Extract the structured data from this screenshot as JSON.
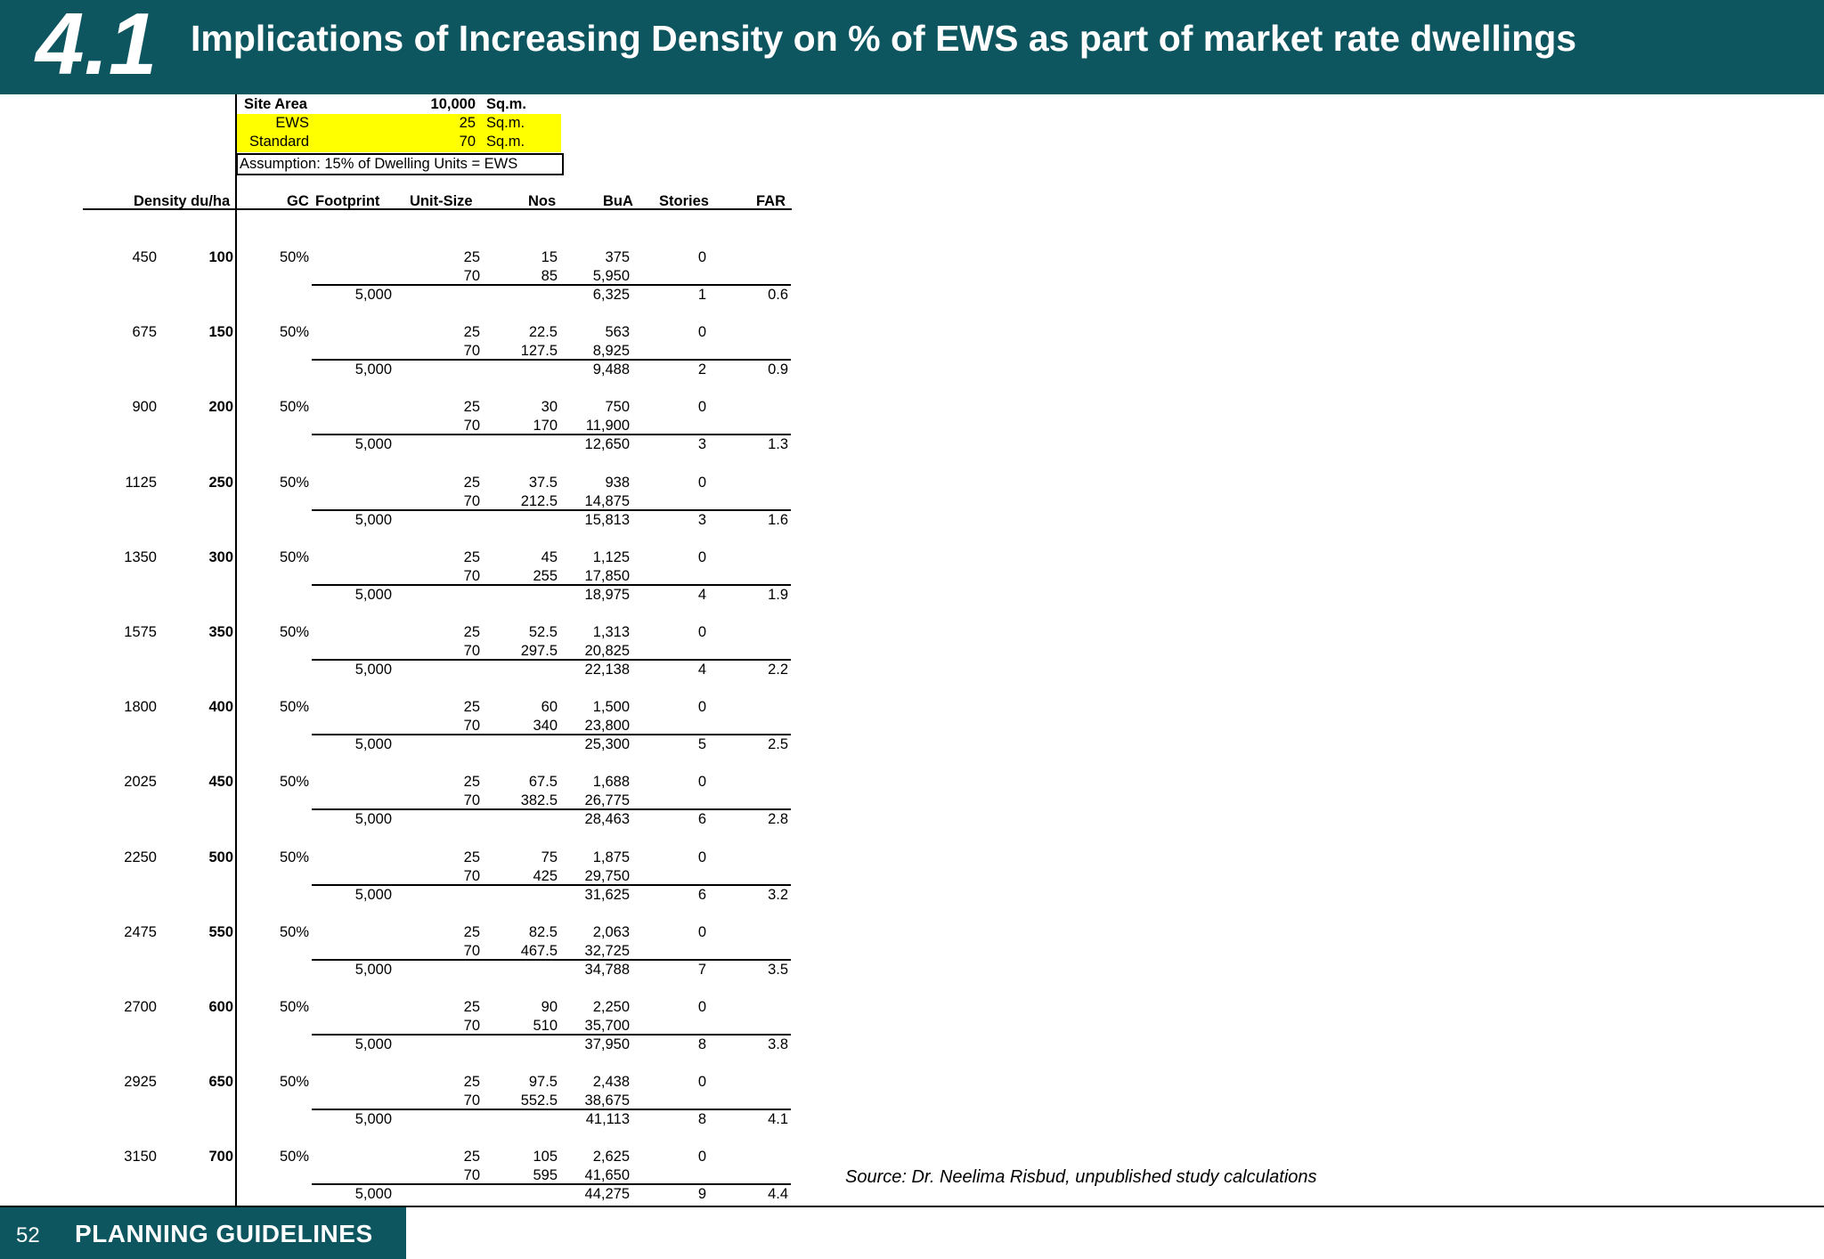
{
  "header": {
    "number": "4.1",
    "title": "Implications of Increasing Density on % of EWS as part of market rate dwellings"
  },
  "params": {
    "site_area": {
      "label": "Site Area",
      "value": "10,000",
      "unit": "Sq.m."
    },
    "ews": {
      "label": "EWS",
      "value": "25",
      "unit": "Sq.m."
    },
    "standard": {
      "label": "Standard",
      "value": "70",
      "unit": "Sq.m."
    },
    "assumption": "Assumption: 15% of Dwelling Units = EWS"
  },
  "columns": {
    "density": "Density du/ha",
    "gc": "GC",
    "footprint": "Footprint",
    "unit_size": "Unit-Size",
    "nos": "Nos",
    "bua": "BuA",
    "stories": "Stories",
    "far": "FAR"
  },
  "rows": [
    {
      "a": "450",
      "b": "100",
      "gc": "50%",
      "ews_size": "25",
      "ews_nos": "15",
      "ews_bua": "375",
      "ews_st": "0",
      "std_size": "70",
      "std_nos": "85",
      "std_bua": "5,950",
      "footprint": "5,000",
      "total_bua": "6,325",
      "stories": "1",
      "far": "0.6"
    },
    {
      "a": "675",
      "b": "150",
      "gc": "50%",
      "ews_size": "25",
      "ews_nos": "22.5",
      "ews_bua": "563",
      "ews_st": "0",
      "std_size": "70",
      "std_nos": "127.5",
      "std_bua": "8,925",
      "footprint": "5,000",
      "total_bua": "9,488",
      "stories": "2",
      "far": "0.9"
    },
    {
      "a": "900",
      "b": "200",
      "gc": "50%",
      "ews_size": "25",
      "ews_nos": "30",
      "ews_bua": "750",
      "ews_st": "0",
      "std_size": "70",
      "std_nos": "170",
      "std_bua": "11,900",
      "footprint": "5,000",
      "total_bua": "12,650",
      "stories": "3",
      "far": "1.3"
    },
    {
      "a": "1125",
      "b": "250",
      "gc": "50%",
      "ews_size": "25",
      "ews_nos": "37.5",
      "ews_bua": "938",
      "ews_st": "0",
      "std_size": "70",
      "std_nos": "212.5",
      "std_bua": "14,875",
      "footprint": "5,000",
      "total_bua": "15,813",
      "stories": "3",
      "far": "1.6"
    },
    {
      "a": "1350",
      "b": "300",
      "gc": "50%",
      "ews_size": "25",
      "ews_nos": "45",
      "ews_bua": "1,125",
      "ews_st": "0",
      "std_size": "70",
      "std_nos": "255",
      "std_bua": "17,850",
      "footprint": "5,000",
      "total_bua": "18,975",
      "stories": "4",
      "far": "1.9"
    },
    {
      "a": "1575",
      "b": "350",
      "gc": "50%",
      "ews_size": "25",
      "ews_nos": "52.5",
      "ews_bua": "1,313",
      "ews_st": "0",
      "std_size": "70",
      "std_nos": "297.5",
      "std_bua": "20,825",
      "footprint": "5,000",
      "total_bua": "22,138",
      "stories": "4",
      "far": "2.2"
    },
    {
      "a": "1800",
      "b": "400",
      "gc": "50%",
      "ews_size": "25",
      "ews_nos": "60",
      "ews_bua": "1,500",
      "ews_st": "0",
      "std_size": "70",
      "std_nos": "340",
      "std_bua": "23,800",
      "footprint": "5,000",
      "total_bua": "25,300",
      "stories": "5",
      "far": "2.5"
    },
    {
      "a": "2025",
      "b": "450",
      "gc": "50%",
      "ews_size": "25",
      "ews_nos": "67.5",
      "ews_bua": "1,688",
      "ews_st": "0",
      "std_size": "70",
      "std_nos": "382.5",
      "std_bua": "26,775",
      "footprint": "5,000",
      "total_bua": "28,463",
      "stories": "6",
      "far": "2.8"
    },
    {
      "a": "2250",
      "b": "500",
      "gc": "50%",
      "ews_size": "25",
      "ews_nos": "75",
      "ews_bua": "1,875",
      "ews_st": "0",
      "std_size": "70",
      "std_nos": "425",
      "std_bua": "29,750",
      "footprint": "5,000",
      "total_bua": "31,625",
      "stories": "6",
      "far": "3.2"
    },
    {
      "a": "2475",
      "b": "550",
      "gc": "50%",
      "ews_size": "25",
      "ews_nos": "82.5",
      "ews_bua": "2,063",
      "ews_st": "0",
      "std_size": "70",
      "std_nos": "467.5",
      "std_bua": "32,725",
      "footprint": "5,000",
      "total_bua": "34,788",
      "stories": "7",
      "far": "3.5"
    },
    {
      "a": "2700",
      "b": "600",
      "gc": "50%",
      "ews_size": "25",
      "ews_nos": "90",
      "ews_bua": "2,250",
      "ews_st": "0",
      "std_size": "70",
      "std_nos": "510",
      "std_bua": "35,700",
      "footprint": "5,000",
      "total_bua": "37,950",
      "stories": "8",
      "far": "3.8"
    },
    {
      "a": "2925",
      "b": "650",
      "gc": "50%",
      "ews_size": "25",
      "ews_nos": "97.5",
      "ews_bua": "2,438",
      "ews_st": "0",
      "std_size": "70",
      "std_nos": "552.5",
      "std_bua": "38,675",
      "footprint": "5,000",
      "total_bua": "41,113",
      "stories": "8",
      "far": "4.1"
    },
    {
      "a": "3150",
      "b": "700",
      "gc": "50%",
      "ews_size": "25",
      "ews_nos": "105",
      "ews_bua": "2,625",
      "ews_st": "0",
      "std_size": "70",
      "std_nos": "595",
      "std_bua": "41,650",
      "footprint": "5,000",
      "total_bua": "44,275",
      "stories": "9",
      "far": "4.4"
    }
  ],
  "source": "Source: Dr. Neelima Risbud, unpublished study calculations",
  "footer": {
    "page_number": "52",
    "section": "PLANNING GUIDELINES"
  }
}
